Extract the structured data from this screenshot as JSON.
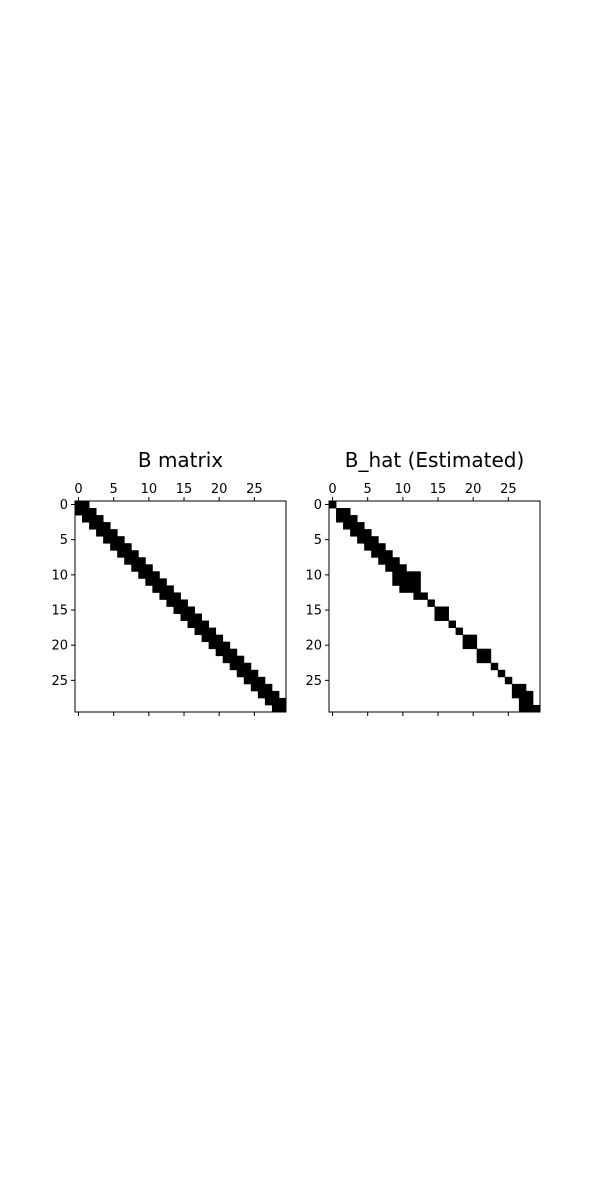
{
  "chart_data": [
    {
      "type": "heatmap",
      "title": "B matrix",
      "xlabel": "",
      "ylabel": "",
      "size": 30,
      "x_ticks": [
        0,
        5,
        10,
        15,
        20,
        25
      ],
      "y_ticks": [
        0,
        5,
        10,
        15,
        20,
        25
      ],
      "x_tick_position": "top",
      "grid": false,
      "colormap": "binary",
      "nonzero_pattern": "tridiagonal",
      "nonzero_rows": [
        [
          0,
          1
        ],
        [
          0,
          1,
          2
        ],
        [
          1,
          2,
          3
        ],
        [
          2,
          3,
          4
        ],
        [
          3,
          4,
          5
        ],
        [
          4,
          5,
          6
        ],
        [
          5,
          6,
          7
        ],
        [
          6,
          7,
          8
        ],
        [
          7,
          8,
          9
        ],
        [
          8,
          9,
          10
        ],
        [
          9,
          10,
          11
        ],
        [
          10,
          11,
          12
        ],
        [
          11,
          12,
          13
        ],
        [
          12,
          13,
          14
        ],
        [
          13,
          14,
          15
        ],
        [
          14,
          15,
          16
        ],
        [
          15,
          16,
          17
        ],
        [
          16,
          17,
          18
        ],
        [
          17,
          18,
          19
        ],
        [
          18,
          19,
          20
        ],
        [
          19,
          20,
          21
        ],
        [
          20,
          21,
          22
        ],
        [
          21,
          22,
          23
        ],
        [
          22,
          23,
          24
        ],
        [
          23,
          24,
          25
        ],
        [
          24,
          25,
          26
        ],
        [
          25,
          26,
          27
        ],
        [
          26,
          27,
          28
        ],
        [
          27,
          28,
          29
        ],
        [
          28,
          29
        ]
      ]
    },
    {
      "type": "heatmap",
      "title": "B_hat (Estimated)",
      "xlabel": "",
      "ylabel": "",
      "size": 30,
      "x_ticks": [
        0,
        5,
        10,
        15,
        20,
        25
      ],
      "y_ticks": [
        0,
        5,
        10,
        15,
        20,
        25
      ],
      "x_tick_position": "top",
      "grid": false,
      "colormap": "binary",
      "nonzero_rows": [
        [
          0
        ],
        [
          1,
          2
        ],
        [
          1,
          2,
          3
        ],
        [
          2,
          3,
          4
        ],
        [
          3,
          4,
          5
        ],
        [
          4,
          5,
          6
        ],
        [
          5,
          6,
          7
        ],
        [
          6,
          7,
          8
        ],
        [
          7,
          8,
          9
        ],
        [
          8,
          9,
          10
        ],
        [
          9,
          10,
          11,
          12
        ],
        [
          9,
          10,
          11,
          12
        ],
        [
          10,
          11,
          12
        ],
        [
          12,
          13
        ],
        [
          14
        ],
        [
          15,
          16
        ],
        [
          15,
          16
        ],
        [
          17
        ],
        [
          18
        ],
        [
          19,
          20
        ],
        [
          19,
          20
        ],
        [
          21,
          22
        ],
        [
          21,
          22
        ],
        [
          23
        ],
        [
          24
        ],
        [
          25
        ],
        [
          26,
          27
        ],
        [
          26,
          27,
          28
        ],
        [
          27,
          28
        ],
        [
          27,
          28,
          29
        ]
      ]
    }
  ]
}
